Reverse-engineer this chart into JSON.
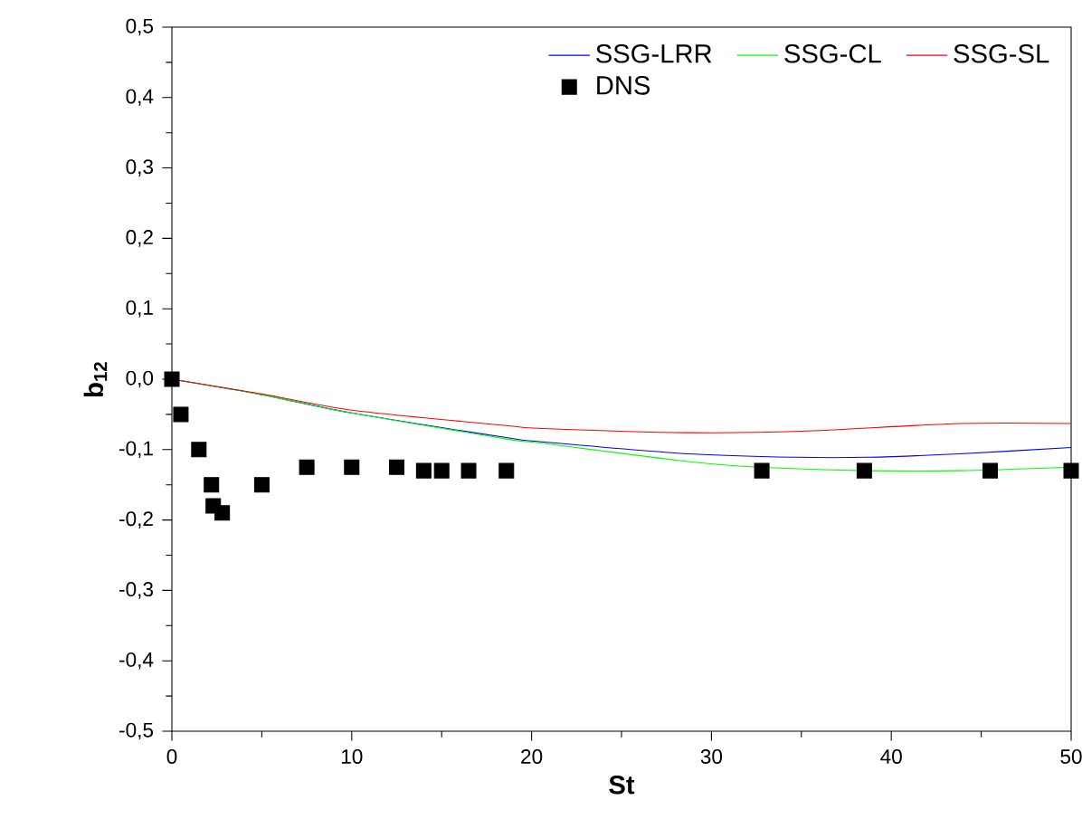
{
  "chart_data": {
    "type": "line",
    "xlabel": "St",
    "ylabel": "b$_{12}$",
    "xlim": [
      0,
      50
    ],
    "xticks": [
      0,
      10,
      20,
      30,
      40,
      50
    ],
    "ylim": [
      -0.5,
      0.5
    ],
    "yticks": [
      {
        "value": -0.5,
        "label": "-0,5"
      },
      {
        "value": -0.4,
        "label": "-0,4"
      },
      {
        "value": -0.3,
        "label": "-0,3"
      },
      {
        "value": -0.2,
        "label": "-0,2"
      },
      {
        "value": -0.1,
        "label": "-0,1"
      },
      {
        "value": 0.0,
        "label": "0,0"
      },
      {
        "value": 0.1,
        "label": "0,1"
      },
      {
        "value": 0.2,
        "label": "0,2"
      },
      {
        "value": 0.3,
        "label": "0,3"
      },
      {
        "value": 0.4,
        "label": "0,4"
      },
      {
        "value": 0.5,
        "label": "0,5"
      }
    ],
    "legend": "top right",
    "grid": false,
    "series": [
      {
        "name": "SSG-LRR",
        "color": "#0000ff",
        "x": [
          0,
          5,
          10,
          18.6,
          20.6,
          28.7,
          34.7,
          38.7,
          43.8,
          50
        ],
        "values": [
          0,
          -0.022,
          -0.048,
          -0.083,
          -0.089,
          -0.106,
          -0.111,
          -0.111,
          -0.106,
          -0.097
        ]
      },
      {
        "name": "SSG-CL",
        "color": "#00ff00",
        "x": [
          0,
          5,
          10,
          18.6,
          20.6,
          28.7,
          32.7,
          38.7,
          43.8,
          50
        ],
        "values": [
          0,
          -0.022,
          -0.048,
          -0.085,
          -0.091,
          -0.117,
          -0.125,
          -0.13,
          -0.13,
          -0.125
        ]
      },
      {
        "name": "SSG-SL",
        "color": "#ff0000",
        "x": [
          0,
          5,
          10,
          18.6,
          20.6,
          28.7,
          35,
          43.8,
          50
        ],
        "values": [
          0,
          -0.021,
          -0.044,
          -0.066,
          -0.07,
          -0.076,
          -0.074,
          -0.063,
          -0.063
        ]
      },
      {
        "name": "DNS",
        "color": "#000000",
        "type": "scatter",
        "marker": "square",
        "x": [
          0,
          0.5,
          1.5,
          2.2,
          2.3,
          2.8,
          5,
          7.5,
          10,
          12.5,
          14,
          15,
          16.5,
          18.6,
          32.8,
          38.5,
          45.5,
          50
        ],
        "values": [
          0,
          -0.05,
          -0.1,
          -0.15,
          -0.18,
          -0.19,
          -0.15,
          -0.125,
          -0.125,
          -0.125,
          -0.13,
          -0.13,
          -0.13,
          -0.13,
          -0.13,
          -0.13,
          -0.13,
          -0.13
        ]
      }
    ]
  }
}
